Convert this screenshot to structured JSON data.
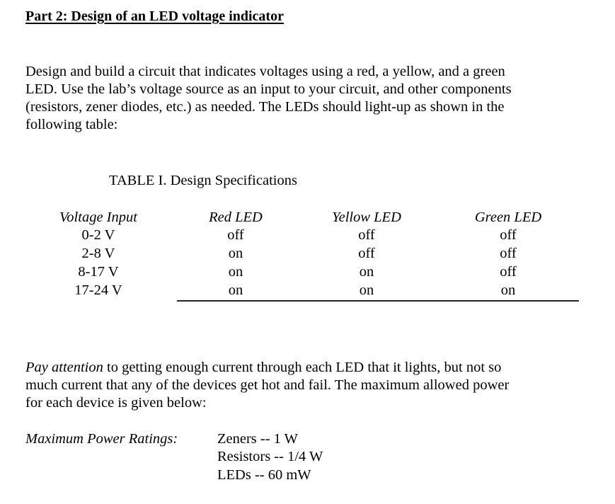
{
  "title": "Part 2:  Design of an LED voltage indicator",
  "intro_lines": [
    "Design and build a circuit that indicates voltages using a red, a yellow, and a green",
    "LED.  Use the lab’s voltage source as an input to your circuit, and other components",
    "(resistors, zener diodes, etc.) as needed.  The LEDs should light-up as shown in the",
    "following table:"
  ],
  "table": {
    "caption": "TABLE I.  Design Specifications",
    "headers": [
      "Voltage Input",
      "Red LED",
      "Yellow LED",
      "Green LED"
    ],
    "rows": [
      [
        "0-2 V",
        "off",
        "off",
        "off"
      ],
      [
        "2-8 V",
        "on",
        "off",
        "off"
      ],
      [
        "8-17 V",
        "on",
        "on",
        "off"
      ],
      [
        "17-24 V",
        "on",
        "on",
        "on"
      ]
    ]
  },
  "attention": {
    "emphasis": "Pay attention",
    "line1_rest": " to getting enough current through each LED that it lights, but not so",
    "line2": "much current that any of the devices get hot and fail.  The maximum allowed power",
    "line3": "for each device is given below:"
  },
  "ratings": {
    "label": "Maximum Power Ratings:",
    "items": [
      "Zeners  --  1 W",
      "Resistors -- 1/4 W",
      "LEDs  --  60 mW"
    ]
  }
}
